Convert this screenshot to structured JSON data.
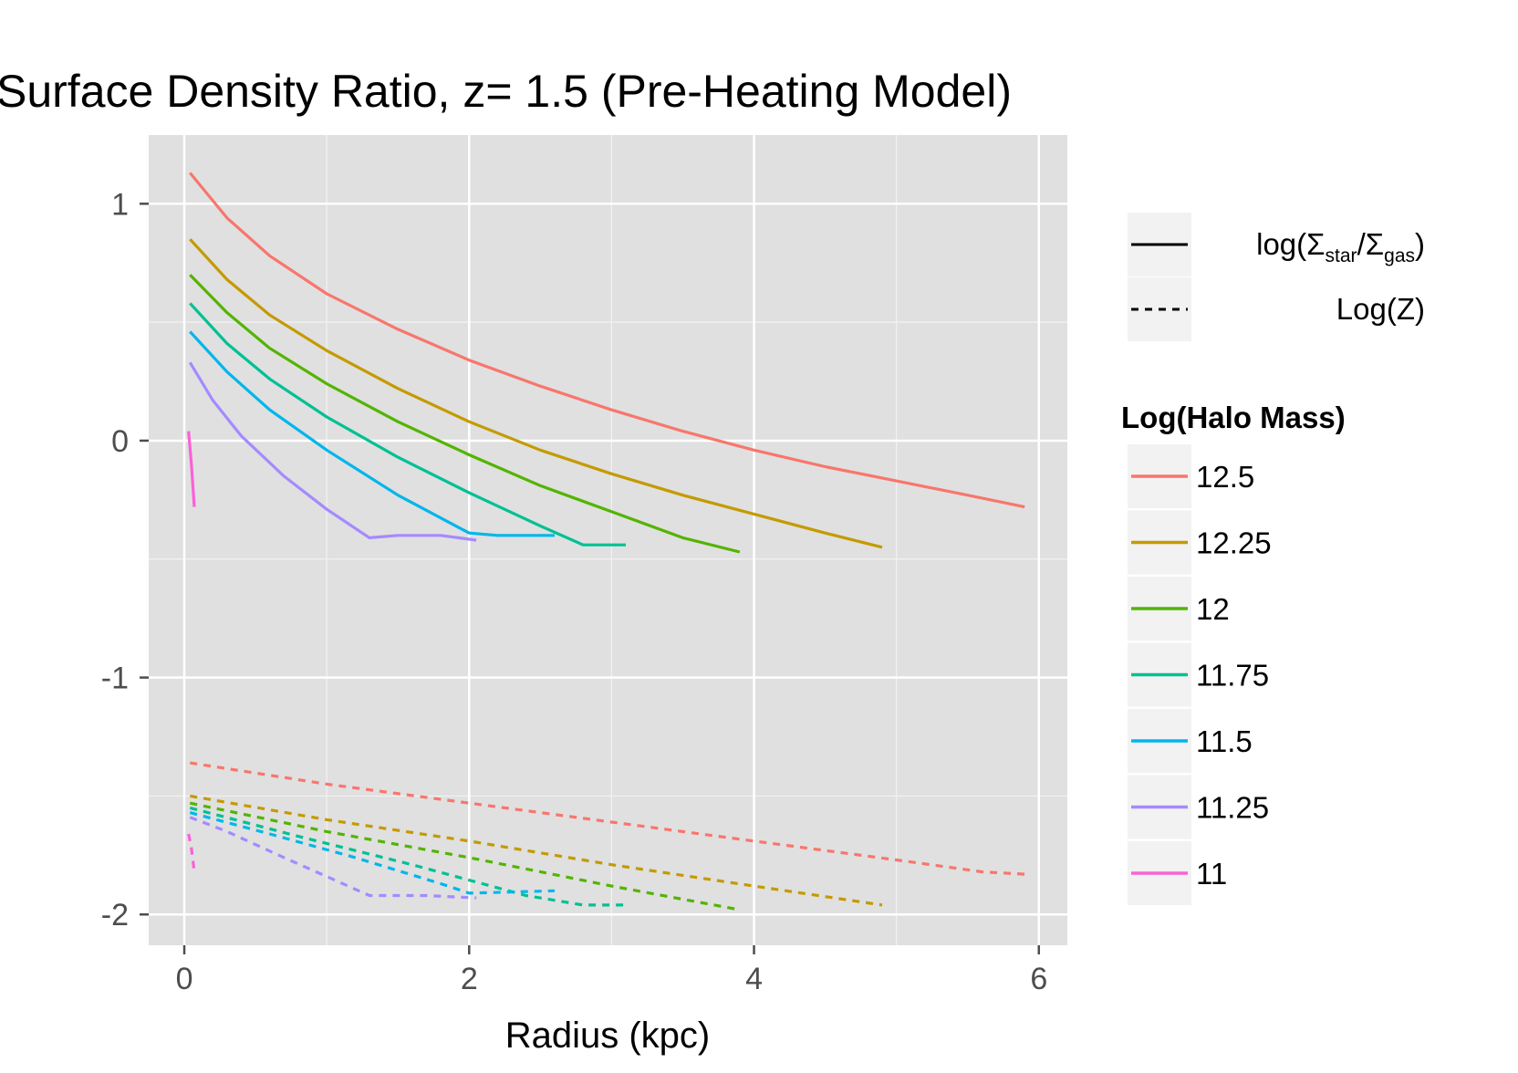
{
  "chart_data": {
    "type": "line",
    "title": "Surface Density Ratio, z= 1.5 (Pre-Heating Model)",
    "xlabel": "Radius (kpc)",
    "ylabel": "",
    "xlim": [
      -0.25,
      6.2
    ],
    "ylim": [
      -2.13,
      1.29
    ],
    "xticks": [
      0,
      2,
      4,
      6
    ],
    "xtick_labels": [
      "0",
      "2",
      "4",
      "6"
    ],
    "yticks": [
      1,
      0,
      -1,
      -2
    ],
    "ytick_labels": [
      "1",
      "0",
      "-1",
      "-2"
    ],
    "grid": true,
    "background": "#e0e0e0",
    "legend_position": "right",
    "linetype_legend": {
      "entries": [
        {
          "linetype": "solid",
          "label_main": "log(Σ",
          "sub1": "star",
          "mid": "/Σ",
          "sub2": "gas",
          "end": ")"
        },
        {
          "linetype": "dashed",
          "label": "Log(Z)"
        }
      ]
    },
    "color_legend": {
      "title": "Log(Halo Mass)",
      "entries": [
        "12.5",
        "12.25",
        "12",
        "11.75",
        "11.5",
        "11.25",
        "11"
      ]
    },
    "series": [
      {
        "name": "12.5",
        "color": "#f8766d",
        "solid": [
          [
            0.04,
            1.13
          ],
          [
            0.3,
            0.94
          ],
          [
            0.6,
            0.78
          ],
          [
            1.0,
            0.62
          ],
          [
            1.5,
            0.47
          ],
          [
            2.0,
            0.34
          ],
          [
            2.5,
            0.23
          ],
          [
            3.0,
            0.13
          ],
          [
            3.5,
            0.04
          ],
          [
            4.0,
            -0.04
          ],
          [
            4.5,
            -0.11
          ],
          [
            5.0,
            -0.17
          ],
          [
            5.5,
            -0.23
          ],
          [
            5.9,
            -0.28
          ]
        ],
        "dashed": [
          [
            0.04,
            -1.36
          ],
          [
            1.0,
            -1.45
          ],
          [
            2.0,
            -1.53
          ],
          [
            3.0,
            -1.61
          ],
          [
            4.0,
            -1.69
          ],
          [
            5.0,
            -1.77
          ],
          [
            5.6,
            -1.82
          ],
          [
            5.9,
            -1.83
          ]
        ]
      },
      {
        "name": "12.25",
        "color": "#c49a00",
        "solid": [
          [
            0.04,
            0.85
          ],
          [
            0.3,
            0.68
          ],
          [
            0.6,
            0.53
          ],
          [
            1.0,
            0.38
          ],
          [
            1.5,
            0.22
          ],
          [
            2.0,
            0.08
          ],
          [
            2.5,
            -0.04
          ],
          [
            3.0,
            -0.14
          ],
          [
            3.5,
            -0.23
          ],
          [
            4.0,
            -0.31
          ],
          [
            4.5,
            -0.39
          ],
          [
            4.9,
            -0.45
          ]
        ],
        "dashed": [
          [
            0.04,
            -1.5
          ],
          [
            1.0,
            -1.6
          ],
          [
            2.0,
            -1.69
          ],
          [
            3.0,
            -1.79
          ],
          [
            4.0,
            -1.88
          ],
          [
            4.9,
            -1.96
          ]
        ]
      },
      {
        "name": "12",
        "color": "#53b400",
        "solid": [
          [
            0.04,
            0.7
          ],
          [
            0.3,
            0.54
          ],
          [
            0.6,
            0.39
          ],
          [
            1.0,
            0.24
          ],
          [
            1.5,
            0.08
          ],
          [
            2.0,
            -0.06
          ],
          [
            2.5,
            -0.19
          ],
          [
            3.0,
            -0.3
          ],
          [
            3.5,
            -0.41
          ],
          [
            3.9,
            -0.47
          ]
        ],
        "dashed": [
          [
            0.04,
            -1.53
          ],
          [
            1.0,
            -1.65
          ],
          [
            2.0,
            -1.76
          ],
          [
            3.0,
            -1.88
          ],
          [
            3.9,
            -1.98
          ]
        ]
      },
      {
        "name": "11.75",
        "color": "#00c094",
        "solid": [
          [
            0.04,
            0.58
          ],
          [
            0.3,
            0.41
          ],
          [
            0.6,
            0.26
          ],
          [
            1.0,
            0.1
          ],
          [
            1.5,
            -0.07
          ],
          [
            2.0,
            -0.22
          ],
          [
            2.5,
            -0.36
          ],
          [
            2.8,
            -0.44
          ],
          [
            3.1,
            -0.44
          ]
        ],
        "dashed": [
          [
            0.04,
            -1.55
          ],
          [
            0.8,
            -1.67
          ],
          [
            1.6,
            -1.79
          ],
          [
            2.4,
            -1.92
          ],
          [
            2.8,
            -1.96
          ],
          [
            3.1,
            -1.96
          ]
        ]
      },
      {
        "name": "11.5",
        "color": "#00b6eb",
        "solid": [
          [
            0.04,
            0.46
          ],
          [
            0.3,
            0.29
          ],
          [
            0.6,
            0.13
          ],
          [
            1.0,
            -0.04
          ],
          [
            1.5,
            -0.23
          ],
          [
            2.0,
            -0.39
          ],
          [
            2.2,
            -0.4
          ],
          [
            2.6,
            -0.4
          ]
        ],
        "dashed": [
          [
            0.04,
            -1.57
          ],
          [
            0.6,
            -1.66
          ],
          [
            1.2,
            -1.76
          ],
          [
            1.8,
            -1.87
          ],
          [
            2.0,
            -1.91
          ],
          [
            2.6,
            -1.9
          ]
        ]
      },
      {
        "name": "11.25",
        "color": "#a58aff",
        "solid": [
          [
            0.04,
            0.33
          ],
          [
            0.2,
            0.17
          ],
          [
            0.4,
            0.02
          ],
          [
            0.7,
            -0.15
          ],
          [
            1.0,
            -0.29
          ],
          [
            1.3,
            -0.41
          ],
          [
            1.5,
            -0.4
          ],
          [
            1.8,
            -0.4
          ],
          [
            2.05,
            -0.42
          ]
        ],
        "dashed": [
          [
            0.04,
            -1.59
          ],
          [
            0.3,
            -1.65
          ],
          [
            0.7,
            -1.76
          ],
          [
            1.0,
            -1.84
          ],
          [
            1.3,
            -1.92
          ],
          [
            1.7,
            -1.92
          ],
          [
            2.05,
            -1.93
          ]
        ]
      },
      {
        "name": "11",
        "color": "#fb61d7",
        "solid": [
          [
            0.03,
            0.04
          ],
          [
            0.05,
            -0.1
          ],
          [
            0.07,
            -0.28
          ]
        ],
        "dashed": [
          [
            0.03,
            -1.66
          ],
          [
            0.05,
            -1.72
          ],
          [
            0.07,
            -1.82
          ]
        ]
      }
    ]
  }
}
